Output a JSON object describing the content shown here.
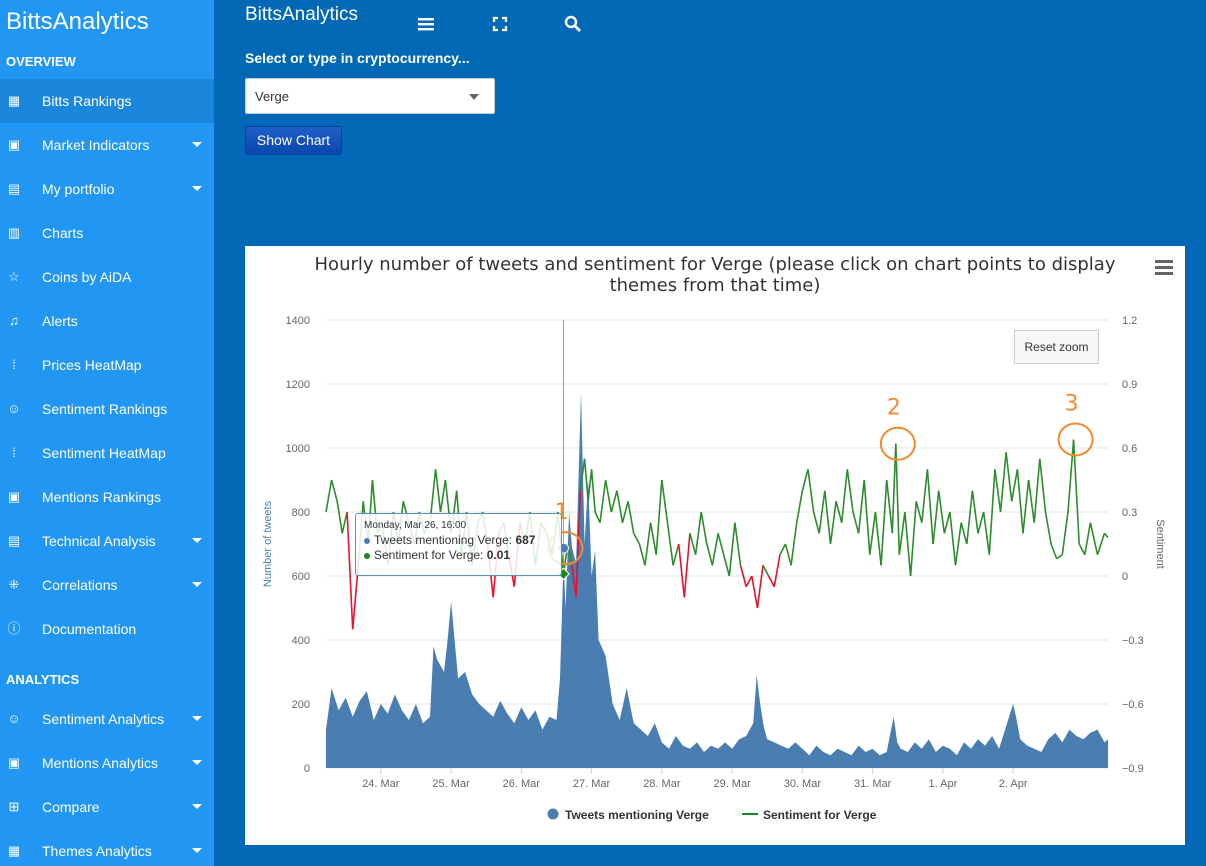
{
  "sidebar": {
    "brand": "BittsAnalytics",
    "section_overview": "OVERVIEW",
    "section_analytics": "ANALYTICS",
    "items": [
      {
        "label": "Bitts Rankings",
        "icon": "grid-icon",
        "caret": false,
        "active": true
      },
      {
        "label": "Market Indicators",
        "icon": "image-icon",
        "caret": true
      },
      {
        "label": "My portfolio",
        "icon": "id-card-icon",
        "caret": true
      },
      {
        "label": "Charts",
        "icon": "bar-chart-icon",
        "caret": false
      },
      {
        "label": "Coins by AiDA",
        "icon": "star-icon",
        "caret": false
      },
      {
        "label": "Alerts",
        "icon": "bell-icon",
        "caret": false
      },
      {
        "label": "Prices HeatMap",
        "icon": "dots-grid-icon",
        "caret": false
      },
      {
        "label": "Sentiment Rankings",
        "icon": "smiley-icon",
        "caret": false
      },
      {
        "label": "Sentiment HeatMap",
        "icon": "dots-grid-icon",
        "caret": false
      },
      {
        "label": "Mentions Rankings",
        "icon": "image-icon",
        "caret": false
      },
      {
        "label": "Technical Analysis",
        "icon": "id-card-icon",
        "caret": true
      },
      {
        "label": "Correlations",
        "icon": "scatter-icon",
        "caret": true
      },
      {
        "label": "Documentation",
        "icon": "info-icon",
        "caret": false
      },
      {
        "label": "Sentiment Analytics",
        "icon": "smiley-icon",
        "caret": true
      },
      {
        "label": "Mentions Analytics",
        "icon": "image-icon",
        "caret": true
      },
      {
        "label": "Compare",
        "icon": "compare-icon",
        "caret": true
      },
      {
        "label": "Themes Analytics",
        "icon": "grid-icon",
        "caret": true
      }
    ]
  },
  "topbar": {
    "title": "BittsAnalytics",
    "menu_icon": "hamburger-icon",
    "fullscreen_icon": "fullscreen-icon",
    "search_icon": "search-icon"
  },
  "form": {
    "label": "Select or type in cryptocurrency...",
    "selected": "Verge",
    "button": "Show Chart"
  },
  "chart": {
    "reset_zoom": "Reset zoom",
    "tooltip": {
      "date": "Monday, Mar 26, 16:00",
      "tweets_label": "Tweets mentioning Verge:",
      "tweets_value": "687",
      "sentiment_label": "Sentiment for Verge:",
      "sentiment_value": "0.01"
    },
    "annotations": [
      "1",
      "2",
      "3"
    ]
  },
  "colors": {
    "sidebar": "#2196f3",
    "background": "#0068b5",
    "area": "#4a7eb0",
    "sentiment_positive": "#2e8b2e",
    "sentiment_negative": "#e8112d",
    "annotation": "#f28a2e"
  },
  "chart_data": {
    "type": "area+line",
    "title": "Hourly number of tweets and sentiment for Verge (please click on chart points to display themes from that time)",
    "ylabel": "Number of tweets",
    "y2label": "Sentiment",
    "ylim": [
      0,
      1400
    ],
    "y2lim": [
      -0.9,
      1.2
    ],
    "yticks": [
      "0",
      "200",
      "400",
      "600",
      "800",
      "1000",
      "1200",
      "1400"
    ],
    "y2ticks": [
      "−0.9",
      "−0.6",
      "−0.3",
      "0",
      "0.3",
      "0.6",
      "0.9",
      "1.2"
    ],
    "xticks": [
      "24. Mar",
      "25. Mar",
      "26. Mar",
      "27. Mar",
      "28. Mar",
      "29. Mar",
      "30. Mar",
      "31. Mar",
      "1. Apr",
      "2. Apr"
    ],
    "x_range_days": [
      -0.78,
      10.35
    ],
    "legend": [
      "Tweets mentioning Verge",
      "Sentiment for Verge"
    ],
    "tweets_points": [
      [
        -0.78,
        120
      ],
      [
        -0.7,
        250
      ],
      [
        -0.6,
        180
      ],
      [
        -0.5,
        220
      ],
      [
        -0.4,
        160
      ],
      [
        -0.3,
        210
      ],
      [
        -0.2,
        240
      ],
      [
        -0.1,
        150
      ],
      [
        0,
        200
      ],
      [
        0.1,
        170
      ],
      [
        0.2,
        230
      ],
      [
        0.3,
        180
      ],
      [
        0.4,
        150
      ],
      [
        0.5,
        200
      ],
      [
        0.6,
        140
      ],
      [
        0.7,
        160
      ],
      [
        0.75,
        380
      ],
      [
        0.8,
        340
      ],
      [
        0.9,
        300
      ],
      [
        0.95,
        400
      ],
      [
        1.0,
        520
      ],
      [
        1.05,
        400
      ],
      [
        1.1,
        280
      ],
      [
        1.2,
        300
      ],
      [
        1.3,
        230
      ],
      [
        1.4,
        200
      ],
      [
        1.5,
        180
      ],
      [
        1.6,
        160
      ],
      [
        1.7,
        210
      ],
      [
        1.8,
        170
      ],
      [
        1.9,
        140
      ],
      [
        2.0,
        190
      ],
      [
        2.1,
        150
      ],
      [
        2.2,
        180
      ],
      [
        2.3,
        120
      ],
      [
        2.4,
        160
      ],
      [
        2.5,
        150
      ],
      [
        2.55,
        280
      ],
      [
        2.6,
        650
      ],
      [
        2.63,
        500
      ],
      [
        2.68,
        800
      ],
      [
        2.72,
        690
      ],
      [
        2.78,
        640
      ],
      [
        2.85,
        1175
      ],
      [
        2.9,
        700
      ],
      [
        2.95,
        900
      ],
      [
        3.0,
        600
      ],
      [
        3.05,
        680
      ],
      [
        3.1,
        400
      ],
      [
        3.2,
        350
      ],
      [
        3.3,
        200
      ],
      [
        3.4,
        150
      ],
      [
        3.5,
        250
      ],
      [
        3.6,
        140
      ],
      [
        3.7,
        120
      ],
      [
        3.8,
        100
      ],
      [
        3.9,
        140
      ],
      [
        4.0,
        80
      ],
      [
        4.1,
        60
      ],
      [
        4.2,
        100
      ],
      [
        4.3,
        70
      ],
      [
        4.4,
        60
      ],
      [
        4.5,
        80
      ],
      [
        4.6,
        50
      ],
      [
        4.7,
        70
      ],
      [
        4.8,
        60
      ],
      [
        4.9,
        80
      ],
      [
        5.0,
        60
      ],
      [
        5.1,
        90
      ],
      [
        5.2,
        100
      ],
      [
        5.3,
        140
      ],
      [
        5.35,
        290
      ],
      [
        5.4,
        200
      ],
      [
        5.45,
        130
      ],
      [
        5.5,
        90
      ],
      [
        5.6,
        80
      ],
      [
        5.7,
        70
      ],
      [
        5.8,
        60
      ],
      [
        5.9,
        80
      ],
      [
        6.0,
        60
      ],
      [
        6.1,
        40
      ],
      [
        6.2,
        70
      ],
      [
        6.3,
        50
      ],
      [
        6.4,
        40
      ],
      [
        6.5,
        60
      ],
      [
        6.6,
        50
      ],
      [
        6.7,
        40
      ],
      [
        6.8,
        70
      ],
      [
        6.9,
        50
      ],
      [
        7.0,
        60
      ],
      [
        7.1,
        40
      ],
      [
        7.2,
        50
      ],
      [
        7.3,
        160
      ],
      [
        7.35,
        80
      ],
      [
        7.4,
        60
      ],
      [
        7.5,
        50
      ],
      [
        7.6,
        80
      ],
      [
        7.7,
        60
      ],
      [
        7.8,
        90
      ],
      [
        7.9,
        50
      ],
      [
        8.0,
        70
      ],
      [
        8.1,
        60
      ],
      [
        8.2,
        40
      ],
      [
        8.3,
        80
      ],
      [
        8.4,
        60
      ],
      [
        8.5,
        90
      ],
      [
        8.6,
        70
      ],
      [
        8.7,
        100
      ],
      [
        8.8,
        60
      ],
      [
        8.9,
        130
      ],
      [
        9.0,
        200
      ],
      [
        9.05,
        150
      ],
      [
        9.1,
        90
      ],
      [
        9.2,
        70
      ],
      [
        9.3,
        60
      ],
      [
        9.4,
        50
      ],
      [
        9.5,
        90
      ],
      [
        9.6,
        110
      ],
      [
        9.7,
        80
      ],
      [
        9.8,
        120
      ],
      [
        9.9,
        100
      ],
      [
        10.0,
        90
      ],
      [
        10.1,
        110
      ],
      [
        10.2,
        120
      ],
      [
        10.3,
        80
      ],
      [
        10.35,
        90
      ]
    ],
    "sentiment_points": [
      [
        -0.78,
        0.3
      ],
      [
        -0.7,
        0.45
      ],
      [
        -0.62,
        0.35
      ],
      [
        -0.55,
        0.2
      ],
      [
        -0.48,
        0.3
      ],
      [
        -0.4,
        -0.25
      ],
      [
        -0.32,
        0.05
      ],
      [
        -0.25,
        0.35
      ],
      [
        -0.18,
        0.15
      ],
      [
        -0.12,
        0.45
      ],
      [
        -0.05,
        0.2
      ],
      [
        0.02,
        0.25
      ],
      [
        0.1,
        0.05
      ],
      [
        0.18,
        0.3
      ],
      [
        0.25,
        0.15
      ],
      [
        0.32,
        0.35
      ],
      [
        0.4,
        0.25
      ],
      [
        0.48,
        0.15
      ],
      [
        0.55,
        0.3
      ],
      [
        0.62,
        0.2
      ],
      [
        0.7,
        0.25
      ],
      [
        0.78,
        0.5
      ],
      [
        0.85,
        0.3
      ],
      [
        0.92,
        0.45
      ],
      [
        1.0,
        0.2
      ],
      [
        1.08,
        0.4
      ],
      [
        1.15,
        0.1
      ],
      [
        1.22,
        0.3
      ],
      [
        1.3,
        0.05
      ],
      [
        1.38,
        0.25
      ],
      [
        1.45,
        0.3
      ],
      [
        1.52,
        0.15
      ],
      [
        1.6,
        -0.1
      ],
      [
        1.68,
        0.2
      ],
      [
        1.75,
        0.25
      ],
      [
        1.82,
        0.1
      ],
      [
        1.9,
        -0.05
      ],
      [
        1.98,
        0.25
      ],
      [
        2.05,
        0.15
      ],
      [
        2.12,
        0.3
      ],
      [
        2.2,
        0.05
      ],
      [
        2.28,
        0.25
      ],
      [
        2.36,
        0.2
      ],
      [
        2.44,
        0.1
      ],
      [
        2.52,
        0.3
      ],
      [
        2.6,
        0.01
      ],
      [
        2.66,
        0.15
      ],
      [
        2.72,
        0.05
      ],
      [
        2.78,
        -0.1
      ],
      [
        2.84,
        0.4
      ],
      [
        2.9,
        0.55
      ],
      [
        2.95,
        0.35
      ],
      [
        3.0,
        0.5
      ],
      [
        3.05,
        0.3
      ],
      [
        3.12,
        0.25
      ],
      [
        3.2,
        0.45
      ],
      [
        3.28,
        0.3
      ],
      [
        3.36,
        0.4
      ],
      [
        3.44,
        0.25
      ],
      [
        3.52,
        0.35
      ],
      [
        3.6,
        0.2
      ],
      [
        3.68,
        0.15
      ],
      [
        3.76,
        0.05
      ],
      [
        3.84,
        0.25
      ],
      [
        3.92,
        0.1
      ],
      [
        4.0,
        0.45
      ],
      [
        4.08,
        0.25
      ],
      [
        4.16,
        0.05
      ],
      [
        4.24,
        0.15
      ],
      [
        4.32,
        -0.1
      ],
      [
        4.4,
        0.2
      ],
      [
        4.48,
        0.1
      ],
      [
        4.56,
        0.3
      ],
      [
        4.64,
        0.15
      ],
      [
        4.72,
        0.05
      ],
      [
        4.8,
        0.2
      ],
      [
        4.88,
        0.1
      ],
      [
        4.96,
        0.0
      ],
      [
        5.04,
        0.25
      ],
      [
        5.12,
        0.05
      ],
      [
        5.2,
        -0.05
      ],
      [
        5.28,
        0.0
      ],
      [
        5.36,
        -0.15
      ],
      [
        5.44,
        0.05
      ],
      [
        5.52,
        0.0
      ],
      [
        5.6,
        -0.05
      ],
      [
        5.68,
        0.1
      ],
      [
        5.76,
        0.15
      ],
      [
        5.84,
        0.05
      ],
      [
        5.92,
        0.25
      ],
      [
        6.0,
        0.4
      ],
      [
        6.08,
        0.5
      ],
      [
        6.16,
        0.3
      ],
      [
        6.24,
        0.2
      ],
      [
        6.32,
        0.4
      ],
      [
        6.4,
        0.15
      ],
      [
        6.48,
        0.35
      ],
      [
        6.56,
        0.25
      ],
      [
        6.64,
        0.5
      ],
      [
        6.72,
        0.3
      ],
      [
        6.8,
        0.2
      ],
      [
        6.88,
        0.45
      ],
      [
        6.96,
        0.1
      ],
      [
        7.04,
        0.3
      ],
      [
        7.12,
        0.05
      ],
      [
        7.2,
        0.45
      ],
      [
        7.28,
        0.2
      ],
      [
        7.33,
        0.62
      ],
      [
        7.38,
        0.1
      ],
      [
        7.46,
        0.3
      ],
      [
        7.54,
        0.0
      ],
      [
        7.62,
        0.35
      ],
      [
        7.7,
        0.25
      ],
      [
        7.78,
        0.5
      ],
      [
        7.86,
        0.15
      ],
      [
        7.94,
        0.4
      ],
      [
        8.02,
        0.2
      ],
      [
        8.1,
        0.3
      ],
      [
        8.18,
        0.05
      ],
      [
        8.26,
        0.25
      ],
      [
        8.34,
        0.15
      ],
      [
        8.42,
        0.4
      ],
      [
        8.5,
        0.2
      ],
      [
        8.58,
        0.3
      ],
      [
        8.66,
        0.1
      ],
      [
        8.74,
        0.5
      ],
      [
        8.82,
        0.3
      ],
      [
        8.9,
        0.58
      ],
      [
        8.98,
        0.35
      ],
      [
        9.06,
        0.5
      ],
      [
        9.14,
        0.2
      ],
      [
        9.22,
        0.45
      ],
      [
        9.3,
        0.25
      ],
      [
        9.38,
        0.55
      ],
      [
        9.46,
        0.3
      ],
      [
        9.54,
        0.15
      ],
      [
        9.62,
        0.08
      ],
      [
        9.7,
        0.1
      ],
      [
        9.78,
        0.3
      ],
      [
        9.86,
        0.64
      ],
      [
        9.94,
        0.15
      ],
      [
        10.02,
        0.1
      ],
      [
        10.1,
        0.25
      ],
      [
        10.2,
        0.1
      ],
      [
        10.3,
        0.2
      ],
      [
        10.35,
        0.18
      ]
    ]
  }
}
